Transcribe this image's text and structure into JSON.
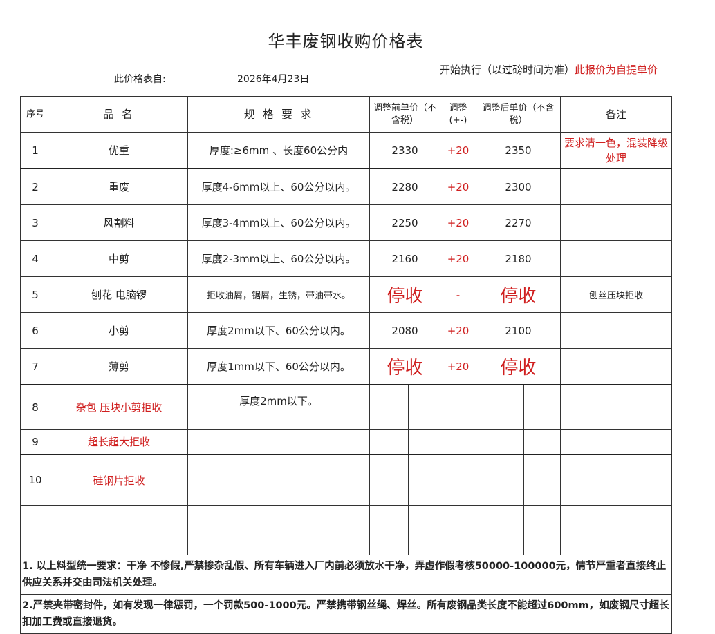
{
  "title": "华丰废钢收购价格表",
  "from_label": "此价格表自:",
  "date": "2026年4月23日",
  "exec_text": "开始执行（以过磅时间为准）",
  "exec_red": "此报价为自提单价",
  "headers": [
    "序号",
    "品 名",
    "规 格 要 求",
    "调整前单价（不含税）",
    "调整(+-)",
    "调整后单价（不含税）",
    "备注"
  ],
  "rows": [
    {
      "no": "1",
      "name": "优重",
      "spec": "厚度:≥6mm 、长度60公分内",
      "before": "2330",
      "adj": "+20",
      "after": "2350",
      "note": "要求清一色，混装降级处理"
    },
    {
      "no": "2",
      "name": "重废",
      "spec": "厚度4-6mm以上、60公分以内。",
      "before": "2280",
      "adj": "+20",
      "after": "2300",
      "note": ""
    },
    {
      "no": "3",
      "name": "风割料",
      "spec": "厚度3-4mm以上、60公分以内。",
      "before": "2250",
      "adj": "+20",
      "after": "2270",
      "note": ""
    },
    {
      "no": "4",
      "name": "中剪",
      "spec": "厚度2-3mm以上、60公分以内。",
      "before": "2160",
      "adj": "+20",
      "after": "2180",
      "note": ""
    },
    {
      "no": "5",
      "name": "刨花 电脑锣",
      "spec": "拒收油屑，锯屑，生锈，带油带水。",
      "before": "停收",
      "adj": "-",
      "after": "停收",
      "note": "刨丝压块拒收"
    },
    {
      "no": "6",
      "name": "小剪",
      "spec": "厚度2mm以下、60公分以内。",
      "before": "2080",
      "adj": "+20",
      "after": "2100",
      "note": ""
    },
    {
      "no": "7",
      "name": "薄剪",
      "spec": "厚度1mm以下、60公分以内。",
      "before": "停收",
      "adj": "+20",
      "after": "停收",
      "note": ""
    }
  ],
  "rows_extra": [
    {
      "no": "8",
      "name": "杂包 压块小剪拒收",
      "spec": "厚度2mm以下。"
    },
    {
      "no": "9",
      "name": "超长超大拒收",
      "spec": ""
    },
    {
      "no": "10",
      "name": "硅钢片拒收",
      "spec": ""
    }
  ],
  "notes": [
    "1. 以上料型统一要求：干净 不惨假,严禁掺杂乱假、所有车辆进入厂内前必须放水干净，弄虚作假考核50000-100000元，情节严重者直接终止供应关系并交由司法机关处理。",
    "2.严禁夹带密封件，如有发现一律惩罚，一个罚款500-1000元。严禁携带钢丝绳、焊丝。所有废钢品类长度不能超过600mm，如废钢尺寸超长扣加工费或直接退货。"
  ],
  "colors": {
    "accent_red": "#d02020",
    "border": "#333333"
  }
}
